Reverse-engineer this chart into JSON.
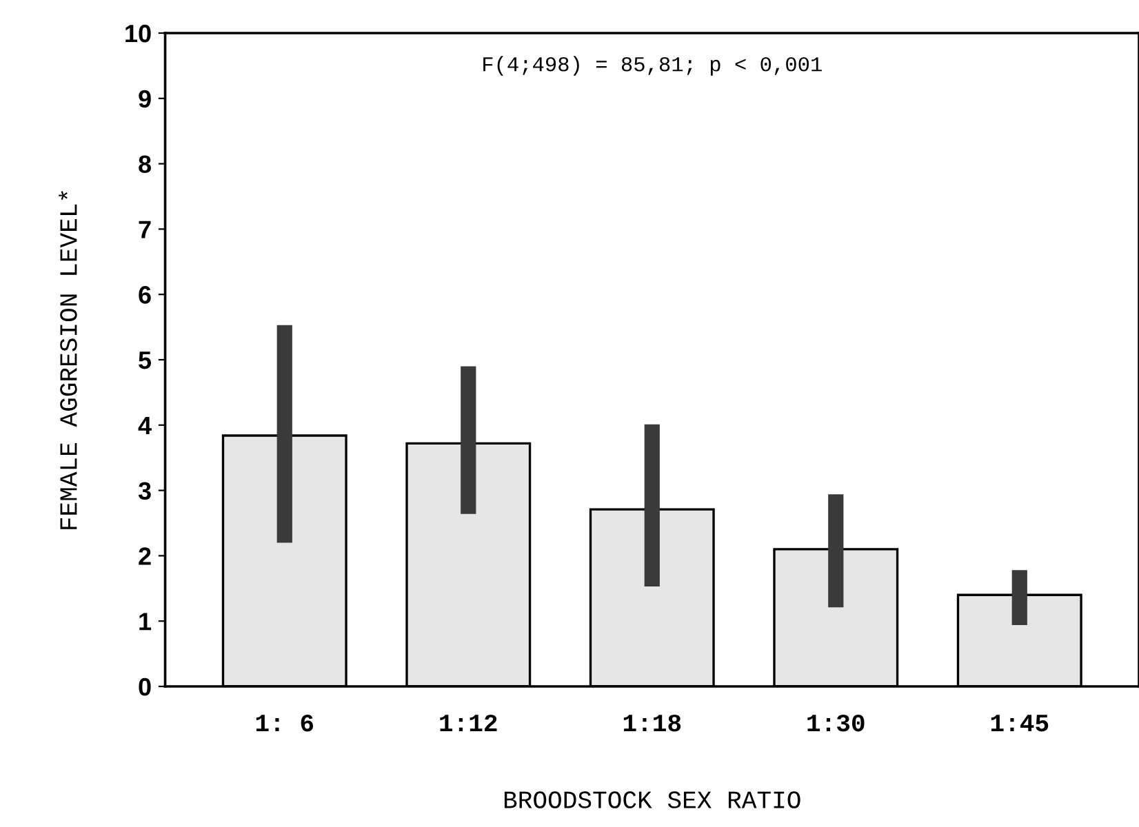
{
  "chart_data": {
    "type": "bar",
    "xlabel": "BROODSTOCK SEX RATIO",
    "ylabel": "FEMALE AGGRESION LEVEL*",
    "categories": [
      "1: 6",
      "1:12",
      "1:18",
      "1:30",
      "1:45"
    ],
    "values": [
      3.84,
      3.72,
      2.71,
      2.1,
      1.4
    ],
    "errors": [
      [
        2.2,
        5.53
      ],
      [
        2.64,
        4.9
      ],
      [
        1.53,
        4.01
      ],
      [
        1.21,
        2.94
      ],
      [
        0.94,
        1.78
      ]
    ],
    "color": "#e6e6e6",
    "ylim": [
      0,
      10
    ],
    "yticks": [
      0,
      1,
      2,
      3,
      4,
      5,
      6,
      7,
      8,
      9,
      10
    ],
    "grid": false,
    "annotations": [
      "F(4;498) = 85,81; p < 0,001"
    ]
  }
}
